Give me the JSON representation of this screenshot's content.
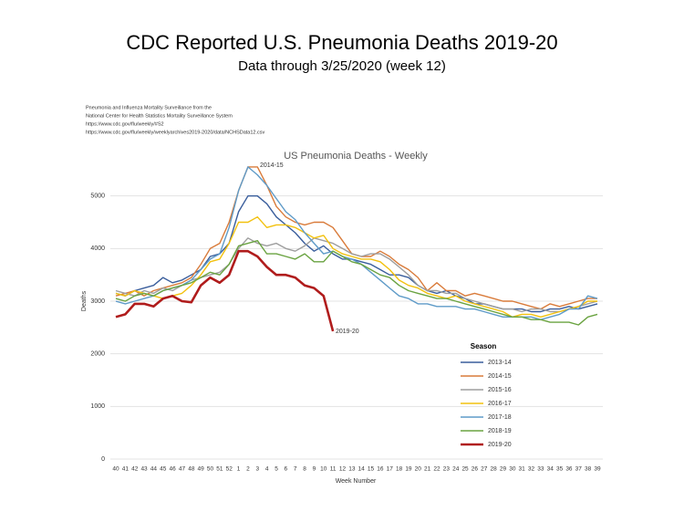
{
  "header": {
    "title": "CDC Reported U.S. Pneumonia Deaths 2019-20",
    "subtitle": "Data through 3/25/2020 (week 12)"
  },
  "source": [
    "Pneumonia and Influenza Mortality Surveillance from the",
    "National Center for Health Statistics Mortality Surveillance System",
    "https://www.cdc.gov/flu/weekly/#S2",
    "https://www.cdc.gov/flu/weekly/weeklyarchives2019-2020/data/NCHSData12.csv"
  ],
  "chart_data": {
    "type": "line",
    "title": "US Pneumonia Deaths - Weekly",
    "x_label": "Week Number",
    "y_label": "Deaths",
    "categories": [
      "40",
      "41",
      "42",
      "43",
      "44",
      "45",
      "46",
      "47",
      "48",
      "49",
      "50",
      "51",
      "52",
      "1",
      "2",
      "3",
      "4",
      "5",
      "6",
      "7",
      "8",
      "9",
      "10",
      "11",
      "12",
      "13",
      "14",
      "15",
      "16",
      "17",
      "18",
      "19",
      "20",
      "21",
      "22",
      "23",
      "24",
      "25",
      "26",
      "27",
      "28",
      "29",
      "30",
      "31",
      "32",
      "33",
      "34",
      "35",
      "36",
      "37",
      "38",
      "39"
    ],
    "ylim": [
      0,
      6000
    ],
    "yticks": [
      0,
      1000,
      2000,
      3000,
      4000,
      5000
    ],
    "grid": true,
    "legend_title": "Season",
    "annotations": [
      "2014-15",
      "2019-20"
    ],
    "series": [
      {
        "name": "2013-14",
        "color": "#3a5e9c",
        "values": [
          3150,
          3100,
          3200,
          3250,
          3300,
          3450,
          3350,
          3400,
          3500,
          3600,
          3850,
          3900,
          4100,
          4700,
          5000,
          5000,
          4850,
          4600,
          4450,
          4300,
          4100,
          3950,
          4050,
          3900,
          3800,
          3800,
          3750,
          3700,
          3600,
          3500,
          3500,
          3450,
          3300,
          3200,
          3150,
          3200,
          3100,
          3050,
          2950,
          2950,
          2900,
          2850,
          2850,
          2850,
          2800,
          2800,
          2850,
          2850,
          2900,
          2850,
          2900,
          2950
        ]
      },
      {
        "name": "2014-15",
        "color": "#d97b3a",
        "values": [
          3100,
          3150,
          3200,
          3100,
          3200,
          3250,
          3300,
          3350,
          3450,
          3700,
          4000,
          4100,
          4500,
          5100,
          5550,
          5550,
          5200,
          4800,
          4600,
          4500,
          4450,
          4500,
          4500,
          4400,
          4150,
          3900,
          3850,
          3850,
          3950,
          3850,
          3700,
          3600,
          3450,
          3200,
          3350,
          3200,
          3200,
          3100,
          3150,
          3100,
          3050,
          3000,
          3000,
          2950,
          2900,
          2850,
          2950,
          2900,
          2950,
          3000,
          3050,
          3050
        ]
      },
      {
        "name": "2015-16",
        "color": "#9e9e9e",
        "values": [
          3200,
          3150,
          3100,
          3200,
          3150,
          3250,
          3200,
          3300,
          3400,
          3450,
          3500,
          3550,
          3700,
          4000,
          4200,
          4100,
          4050,
          4100,
          4000,
          3950,
          4050,
          4200,
          4150,
          4100,
          4000,
          3900,
          3850,
          3900,
          3900,
          3800,
          3650,
          3500,
          3300,
          3200,
          3200,
          3150,
          3150,
          3050,
          3000,
          2950,
          2900,
          2850,
          2850,
          2800,
          2850,
          2850,
          2800,
          2800,
          2850,
          2900,
          2950,
          3000
        ]
      },
      {
        "name": "2016-17",
        "color": "#f2c10f",
        "values": [
          3150,
          3100,
          3200,
          3150,
          3100,
          3050,
          3100,
          3150,
          3300,
          3500,
          3750,
          3800,
          4100,
          4500,
          4500,
          4600,
          4400,
          4450,
          4450,
          4400,
          4300,
          4200,
          4250,
          4000,
          3900,
          3850,
          3800,
          3800,
          3750,
          3600,
          3400,
          3300,
          3250,
          3150,
          3100,
          3050,
          3100,
          3000,
          2950,
          2900,
          2850,
          2800,
          2700,
          2750,
          2750,
          2700,
          2750,
          2800,
          2850,
          2900,
          3000,
          3000
        ]
      },
      {
        "name": "2017-18",
        "color": "#5f9bc8",
        "values": [
          3000,
          2950,
          3000,
          3050,
          3100,
          3200,
          3250,
          3300,
          3400,
          3600,
          3800,
          3900,
          4400,
          5100,
          5550,
          5400,
          5200,
          4950,
          4700,
          4550,
          4300,
          4100,
          3900,
          3950,
          3850,
          3800,
          3700,
          3550,
          3400,
          3250,
          3100,
          3050,
          2950,
          2950,
          2900,
          2900,
          2900,
          2850,
          2850,
          2800,
          2750,
          2700,
          2700,
          2700,
          2700,
          2650,
          2700,
          2750,
          2850,
          2850,
          3100,
          3050
        ]
      },
      {
        "name": "2018-19",
        "color": "#6aa341",
        "values": [
          3050,
          3000,
          3100,
          3150,
          3100,
          3200,
          3250,
          3300,
          3350,
          3450,
          3550,
          3500,
          3700,
          4050,
          4100,
          4150,
          3900,
          3900,
          3850,
          3800,
          3900,
          3750,
          3750,
          3950,
          3850,
          3750,
          3700,
          3600,
          3500,
          3450,
          3300,
          3200,
          3150,
          3100,
          3050,
          3050,
          3000,
          2950,
          2900,
          2850,
          2800,
          2750,
          2700,
          2700,
          2650,
          2650,
          2600,
          2600,
          2600,
          2550,
          2700,
          2750
        ]
      },
      {
        "name": "2019-20",
        "color": "#b01c1c",
        "values": [
          2700,
          2750,
          2950,
          2950,
          2900,
          3050,
          3100,
          3000,
          2980,
          3300,
          3450,
          3350,
          3500,
          3950,
          3950,
          3850,
          3650,
          3500,
          3500,
          3450,
          3300,
          3250,
          3100,
          2430,
          null,
          null,
          null,
          null,
          null,
          null,
          null,
          null,
          null,
          null,
          null,
          null,
          null,
          null,
          null,
          null,
          null,
          null,
          null,
          null,
          null,
          null,
          null,
          null,
          null,
          null,
          null,
          null
        ]
      }
    ]
  }
}
